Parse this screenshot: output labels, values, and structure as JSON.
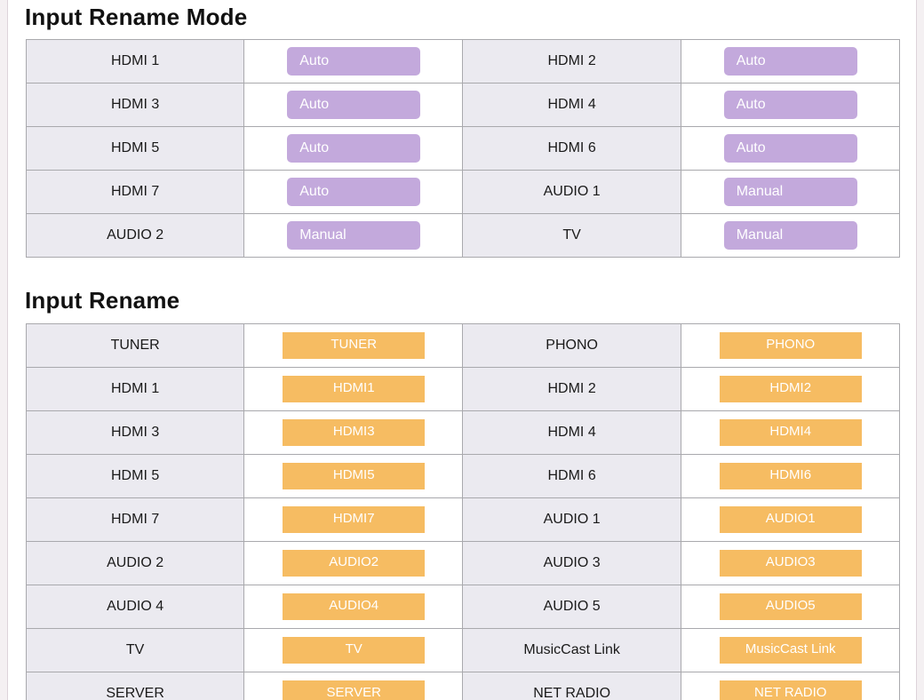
{
  "colors": {
    "mode_button": "#c3a9dc",
    "rename_button": "#f6bc62",
    "label_cell": "#ebeaf0"
  },
  "sections": {
    "mode": {
      "title": "Input Rename Mode",
      "rows": [
        [
          {
            "label": "HDMI 1",
            "value": "Auto"
          },
          {
            "label": "HDMI 2",
            "value": "Auto"
          }
        ],
        [
          {
            "label": "HDMI 3",
            "value": "Auto"
          },
          {
            "label": "HDMI 4",
            "value": "Auto"
          }
        ],
        [
          {
            "label": "HDMI 5",
            "value": "Auto"
          },
          {
            "label": "HDMI 6",
            "value": "Auto"
          }
        ],
        [
          {
            "label": "HDMI 7",
            "value": "Auto"
          },
          {
            "label": "AUDIO 1",
            "value": "Manual"
          }
        ],
        [
          {
            "label": "AUDIO 2",
            "value": "Manual"
          },
          {
            "label": "TV",
            "value": "Manual"
          }
        ]
      ]
    },
    "rename": {
      "title": "Input Rename",
      "rows": [
        [
          {
            "label": "TUNER",
            "value": "TUNER"
          },
          {
            "label": "PHONO",
            "value": "PHONO"
          }
        ],
        [
          {
            "label": "HDMI 1",
            "value": "HDMI1"
          },
          {
            "label": "HDMI 2",
            "value": "HDMI2"
          }
        ],
        [
          {
            "label": "HDMI 3",
            "value": "HDMI3"
          },
          {
            "label": "HDMI 4",
            "value": "HDMI4"
          }
        ],
        [
          {
            "label": "HDMI 5",
            "value": "HDMI5"
          },
          {
            "label": "HDMI 6",
            "value": "HDMI6"
          }
        ],
        [
          {
            "label": "HDMI 7",
            "value": "HDMI7"
          },
          {
            "label": "AUDIO 1",
            "value": "AUDIO1"
          }
        ],
        [
          {
            "label": "AUDIO 2",
            "value": "AUDIO2"
          },
          {
            "label": "AUDIO 3",
            "value": "AUDIO3"
          }
        ],
        [
          {
            "label": "AUDIO 4",
            "value": "AUDIO4"
          },
          {
            "label": "AUDIO 5",
            "value": "AUDIO5"
          }
        ],
        [
          {
            "label": "TV",
            "value": "TV"
          },
          {
            "label": "MusicCast Link",
            "value": "MusicCast Link"
          }
        ],
        [
          {
            "label": "SERVER",
            "value": "SERVER"
          },
          {
            "label": "NET RADIO",
            "value": "NET RADIO"
          }
        ]
      ]
    }
  }
}
